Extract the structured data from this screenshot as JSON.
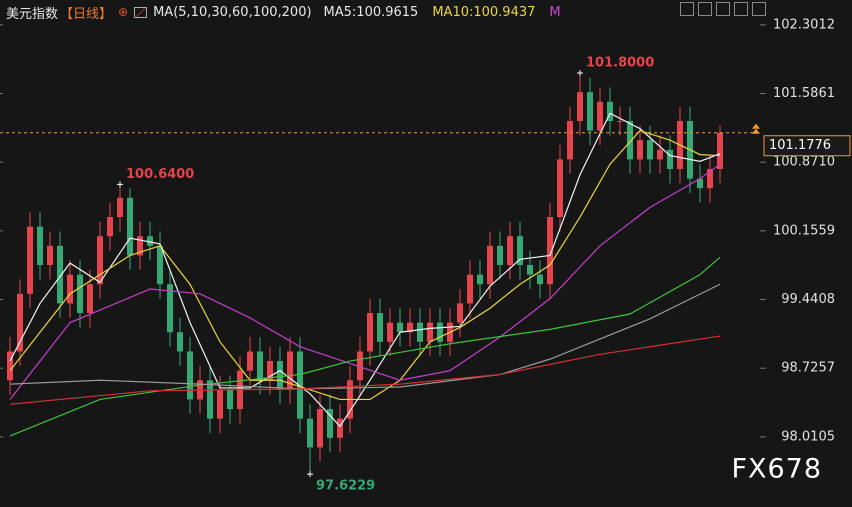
{
  "chart_data": {
    "type": "candlestick",
    "title": "美元指数",
    "period": "【日线】",
    "indicator": "MA(5,10,30,60,100,200)",
    "readouts": [
      {
        "text": "MA5:100.9615",
        "color": "#e8e8e8"
      },
      {
        "text": "MA10:100.9437",
        "color": "#e8d63c"
      },
      {
        "text": "M",
        "color": "#d045d0"
      }
    ],
    "up_color": "#e5444d",
    "down_color": "#36a874",
    "open": [
      98.6,
      98.9,
      99.5,
      100.2,
      99.8,
      100.0,
      99.4,
      99.7,
      99.3,
      99.6,
      100.1,
      100.3,
      100.5,
      99.9,
      100.1,
      100.0,
      99.6,
      99.1,
      98.9,
      98.4,
      98.6,
      98.2,
      98.5,
      98.3,
      98.7,
      98.9,
      98.6,
      98.8,
      98.5,
      98.9,
      98.2,
      97.9,
      98.3,
      98.0,
      98.2,
      98.6,
      98.9,
      99.3,
      99.0,
      99.2,
      99.1,
      99.2,
      99.0,
      99.2,
      99.0,
      99.2,
      99.4,
      99.7,
      99.6,
      100.0,
      99.8,
      100.1,
      99.8,
      99.7,
      99.6,
      100.3,
      100.9,
      101.3,
      101.6,
      101.2,
      101.5,
      101.3,
      101.3,
      100.9,
      101.1,
      100.9,
      101.0,
      100.8,
      101.3,
      100.7,
      100.6,
      100.8
    ],
    "high": [
      99.05,
      99.65,
      100.35,
      100.35,
      100.15,
      100.15,
      99.85,
      99.85,
      99.75,
      100.25,
      100.45,
      100.64,
      100.6,
      100.25,
      100.25,
      100.15,
      99.75,
      99.25,
      99.05,
      98.75,
      98.75,
      98.65,
      98.65,
      98.85,
      99.05,
      99.05,
      98.95,
      98.95,
      99.05,
      99.05,
      98.35,
      98.45,
      98.45,
      98.35,
      98.75,
      99.05,
      99.45,
      99.45,
      99.35,
      99.35,
      99.35,
      99.35,
      99.35,
      99.35,
      99.35,
      99.55,
      99.85,
      99.85,
      100.15,
      100.15,
      100.25,
      100.25,
      99.95,
      99.85,
      100.45,
      101.05,
      101.45,
      101.8,
      101.75,
      101.65,
      101.65,
      101.45,
      101.45,
      101.25,
      101.25,
      101.15,
      101.15,
      101.45,
      101.45,
      100.85,
      100.95,
      101.25
    ],
    "low": [
      98.45,
      98.75,
      99.35,
      99.65,
      99.65,
      99.25,
      99.25,
      99.15,
      99.15,
      99.45,
      99.95,
      100.15,
      99.75,
      99.75,
      99.85,
      99.45,
      98.95,
      98.75,
      98.25,
      98.25,
      98.05,
      98.05,
      98.15,
      98.15,
      98.55,
      98.45,
      98.45,
      98.35,
      98.35,
      98.05,
      97.6229,
      97.75,
      97.85,
      97.85,
      98.05,
      98.45,
      98.75,
      98.85,
      98.85,
      98.95,
      98.95,
      98.85,
      98.85,
      98.85,
      98.85,
      99.05,
      99.25,
      99.45,
      99.45,
      99.65,
      99.65,
      99.65,
      99.55,
      99.45,
      99.45,
      100.15,
      100.75,
      101.15,
      101.05,
      101.05,
      101.15,
      101.15,
      100.75,
      100.75,
      100.75,
      100.75,
      100.65,
      100.65,
      100.55,
      100.45,
      100.45,
      100.65
    ],
    "close": [
      98.9,
      99.5,
      100.2,
      99.8,
      100.0,
      99.4,
      99.7,
      99.3,
      99.6,
      100.1,
      100.3,
      100.5,
      99.9,
      100.1,
      100.0,
      99.6,
      99.1,
      98.9,
      98.4,
      98.6,
      98.2,
      98.5,
      98.3,
      98.7,
      98.9,
      98.6,
      98.8,
      98.5,
      98.9,
      98.2,
      97.9,
      98.3,
      98.0,
      98.2,
      98.6,
      98.9,
      99.3,
      99.0,
      99.2,
      99.1,
      99.2,
      99.0,
      99.2,
      99.0,
      99.2,
      99.4,
      99.7,
      99.6,
      100.0,
      99.8,
      100.1,
      99.8,
      99.7,
      99.6,
      100.3,
      100.9,
      101.3,
      101.6,
      101.2,
      101.5,
      101.3,
      101.3,
      100.9,
      101.1,
      100.9,
      101.0,
      100.8,
      101.3,
      100.7,
      100.6,
      100.8,
      101.1776
    ],
    "series": [
      {
        "name": "MA5",
        "color": "#f2f2f2",
        "x": [
          0,
          3,
          6,
          9,
          12,
          15,
          18,
          21,
          24,
          27,
          30,
          33,
          36,
          39,
          42,
          45,
          48,
          51,
          54,
          57,
          60,
          63,
          66,
          69,
          71
        ],
        "values": [
          98.8,
          99.4,
          99.82,
          99.62,
          100.08,
          100.02,
          99.2,
          98.52,
          98.52,
          98.7,
          98.46,
          98.12,
          98.6,
          99.1,
          99.14,
          99.16,
          99.58,
          99.86,
          99.9,
          100.74,
          101.38,
          101.22,
          100.94,
          100.88,
          100.96
        ]
      },
      {
        "name": "MA10",
        "color": "#e8d63c",
        "x": [
          0,
          3,
          6,
          9,
          12,
          15,
          18,
          21,
          24,
          27,
          30,
          33,
          36,
          39,
          42,
          45,
          48,
          51,
          54,
          57,
          60,
          63,
          66,
          69,
          71
        ],
        "values": [
          98.7,
          99.1,
          99.5,
          99.7,
          99.9,
          100.0,
          99.6,
          99.0,
          98.6,
          98.6,
          98.5,
          98.4,
          98.4,
          98.6,
          99.0,
          99.15,
          99.35,
          99.6,
          99.8,
          100.3,
          100.85,
          101.2,
          101.1,
          100.95,
          100.94
        ]
      },
      {
        "name": "MA30",
        "color": "#c43fcc",
        "x": [
          0,
          6,
          14,
          19,
          24,
          29,
          39,
          44,
          49,
          54,
          59,
          64,
          69,
          71
        ],
        "values": [
          98.4,
          99.2,
          99.55,
          99.5,
          99.25,
          98.95,
          98.6,
          98.7,
          99.05,
          99.45,
          100.0,
          100.4,
          100.7,
          100.85
        ]
      },
      {
        "name": "MA60",
        "color": "#3cc43c",
        "x": [
          0,
          9,
          19,
          29,
          34,
          44,
          54,
          62,
          69,
          71
        ],
        "values": [
          98.02,
          98.4,
          98.55,
          98.66,
          98.8,
          98.98,
          99.13,
          99.29,
          99.7,
          99.88
        ]
      },
      {
        "name": "MA100",
        "color": "#9a9a9a",
        "x": [
          0,
          9,
          19,
          29,
          39,
          49,
          54,
          64,
          71
        ],
        "values": [
          98.56,
          98.6,
          98.56,
          98.51,
          98.53,
          98.66,
          98.82,
          99.24,
          99.6
        ]
      },
      {
        "name": "MA200",
        "color": "#d03232",
        "x": [
          0,
          14,
          29,
          39,
          49,
          59,
          71
        ],
        "values": [
          98.35,
          98.49,
          98.51,
          98.56,
          98.66,
          98.87,
          99.06
        ]
      }
    ],
    "ylim": [
      97.28,
      102.56
    ],
    "yticks": [
      102.3012,
      101.5861,
      {
        "value": 100.871,
        "label": "100.8710"
      },
      100.1559,
      99.4408,
      98.7257,
      98.0105
    ],
    "last_price": 101.1776,
    "annotations": [
      {
        "x": 11,
        "value": 100.64,
        "label": "100.6400",
        "color": "#e5444d"
      },
      {
        "x": 57,
        "value": 101.8,
        "label": "101.8000",
        "color": "#e5444d"
      },
      {
        "x": 30,
        "value": 97.6229,
        "label": "97.6229",
        "color": "#36a874"
      }
    ],
    "watermark": "FX678"
  }
}
